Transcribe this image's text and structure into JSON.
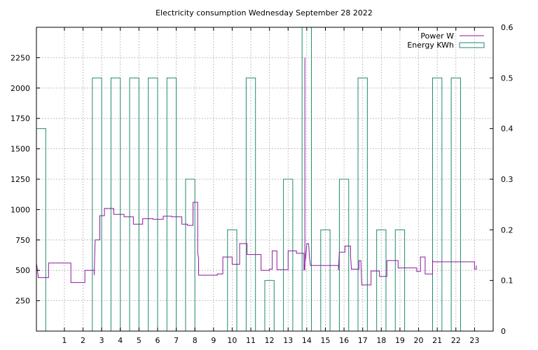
{
  "chart_data": {
    "type": "line",
    "title": "Electricity consumption Wednesday September 28 2022",
    "legend": {
      "position": "top-right",
      "entries": [
        "Power W",
        "Energy KWh"
      ]
    },
    "grid": true,
    "x": {
      "range": [
        -0.5,
        24.0
      ],
      "ticks": [
        1,
        2,
        3,
        4,
        5,
        6,
        7,
        8,
        9,
        10,
        11,
        12,
        13,
        14,
        15,
        16,
        17,
        18,
        19,
        20,
        21,
        22,
        23
      ],
      "tick_labels": [
        "1",
        "2",
        "3",
        "4",
        "5",
        "6",
        "7",
        "8",
        "9",
        "10",
        "11",
        "12",
        "13",
        "14",
        "15",
        "16",
        "17",
        "18",
        "19",
        "20",
        "21",
        "22",
        "23"
      ]
    },
    "y_left": {
      "range": [
        0,
        2500
      ],
      "ticks": [
        250,
        500,
        750,
        1000,
        1250,
        1500,
        1750,
        2000,
        2250
      ],
      "tick_labels": [
        "250",
        "500",
        "750",
        "1000",
        "1250",
        "1500",
        "1750",
        "2000",
        "2250"
      ]
    },
    "y_right": {
      "range": [
        0,
        0.6
      ],
      "ticks": [
        0,
        0.1,
        0.2,
        0.3,
        0.4,
        0.5,
        0.6
      ],
      "tick_labels": [
        "0",
        "0.1",
        "0.2",
        "0.3",
        "0.4",
        "0.5",
        "0.6"
      ]
    },
    "series": [
      {
        "name": "Power W",
        "axis": "left",
        "color": "#8b1a9b",
        "style": "steps",
        "points": [
          [
            -0.5,
            560
          ],
          [
            -0.45,
            510
          ],
          [
            -0.4,
            440
          ],
          [
            0.15,
            440
          ],
          [
            0.15,
            560
          ],
          [
            1.35,
            560
          ],
          [
            1.35,
            400
          ],
          [
            2.1,
            400
          ],
          [
            2.1,
            500
          ],
          [
            2.6,
            500
          ],
          [
            2.6,
            460
          ],
          [
            2.65,
            750
          ],
          [
            2.9,
            750
          ],
          [
            2.9,
            950
          ],
          [
            3.15,
            950
          ],
          [
            3.15,
            1010
          ],
          [
            3.65,
            1010
          ],
          [
            3.65,
            960
          ],
          [
            4.2,
            960
          ],
          [
            4.2,
            940
          ],
          [
            4.7,
            940
          ],
          [
            4.7,
            880
          ],
          [
            5.2,
            880
          ],
          [
            5.2,
            925
          ],
          [
            5.75,
            925
          ],
          [
            5.75,
            920
          ],
          [
            6.3,
            920
          ],
          [
            6.3,
            945
          ],
          [
            6.75,
            945
          ],
          [
            6.75,
            940
          ],
          [
            7.3,
            940
          ],
          [
            7.3,
            880
          ],
          [
            7.6,
            880
          ],
          [
            7.6,
            870
          ],
          [
            7.9,
            870
          ],
          [
            7.9,
            1060
          ],
          [
            8.15,
            1060
          ],
          [
            8.15,
            640
          ],
          [
            8.2,
            600
          ],
          [
            8.2,
            460
          ],
          [
            9.2,
            460
          ],
          [
            9.2,
            470
          ],
          [
            9.5,
            470
          ],
          [
            9.5,
            610
          ],
          [
            10.0,
            610
          ],
          [
            10.0,
            550
          ],
          [
            10.4,
            550
          ],
          [
            10.4,
            720
          ],
          [
            10.8,
            720
          ],
          [
            10.8,
            630
          ],
          [
            11.55,
            630
          ],
          [
            11.55,
            500
          ],
          [
            12.0,
            500
          ],
          [
            12.0,
            510
          ],
          [
            12.15,
            510
          ],
          [
            12.15,
            660
          ],
          [
            12.4,
            660
          ],
          [
            12.4,
            505
          ],
          [
            13.0,
            505
          ],
          [
            13.0,
            660
          ],
          [
            13.45,
            660
          ],
          [
            13.45,
            640
          ],
          [
            13.85,
            640
          ],
          [
            13.85,
            500
          ],
          [
            13.95,
            620
          ],
          [
            14.0,
            720
          ],
          [
            14.1,
            720
          ],
          [
            14.15,
            600
          ],
          [
            14.2,
            540
          ],
          [
            15.7,
            540
          ],
          [
            15.7,
            500
          ],
          [
            15.75,
            650
          ],
          [
            16.05,
            650
          ],
          [
            16.05,
            700
          ],
          [
            16.35,
            700
          ],
          [
            16.35,
            620
          ],
          [
            16.4,
            510
          ],
          [
            16.8,
            510
          ],
          [
            16.8,
            580
          ],
          [
            16.9,
            580
          ],
          [
            16.95,
            380
          ],
          [
            17.45,
            380
          ],
          [
            17.45,
            495
          ],
          [
            17.9,
            495
          ],
          [
            17.9,
            450
          ],
          [
            18.3,
            450
          ],
          [
            18.3,
            580
          ],
          [
            18.9,
            580
          ],
          [
            18.9,
            520
          ],
          [
            19.5,
            520
          ],
          [
            19.5,
            520
          ],
          [
            19.9,
            520
          ],
          [
            19.9,
            490
          ],
          [
            20.1,
            490
          ],
          [
            20.1,
            610
          ],
          [
            20.35,
            610
          ],
          [
            20.35,
            470
          ],
          [
            20.75,
            470
          ],
          [
            20.75,
            580
          ],
          [
            20.8,
            570
          ],
          [
            23.0,
            570
          ],
          [
            23.0,
            510
          ],
          [
            23.1,
            510
          ],
          [
            23.1,
            540
          ]
        ],
        "spikes": [
          [
            13.9,
            2250
          ]
        ]
      },
      {
        "name": "Energy KWh",
        "axis": "right",
        "color": "#1f8a70",
        "style": "boxes",
        "box_width": 0.5,
        "x": [
          -0.25,
          2.75,
          3.75,
          4.75,
          5.75,
          6.75,
          7.75,
          10.0,
          11.0,
          12.0,
          13.0,
          14.0,
          15.0,
          16.0,
          17.0,
          18.0,
          19.0,
          21.0,
          22.0
        ],
        "values": [
          0.4,
          0.5,
          0.5,
          0.5,
          0.5,
          0.5,
          0.3,
          0.2,
          0.5,
          0.1,
          0.3,
          0.6,
          0.2,
          0.3,
          0.5,
          0.2,
          0.2,
          0.5,
          0.5
        ]
      }
    ]
  }
}
